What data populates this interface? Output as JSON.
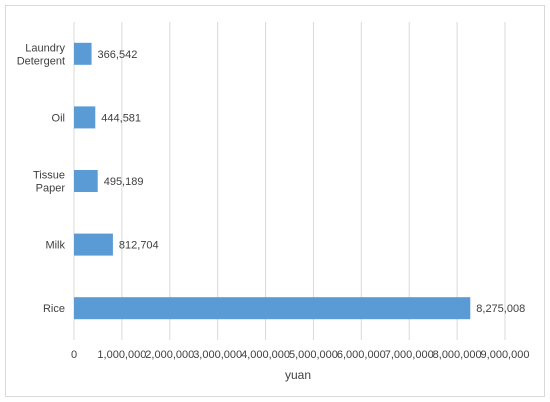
{
  "chart_data": {
    "type": "bar",
    "orientation": "horizontal",
    "categories": [
      "Laundry Detergent",
      "Oil",
      "Tissue Paper",
      "Milk",
      "Rice"
    ],
    "category_lines": [
      [
        "Laundry",
        "Detergent"
      ],
      [
        "Oil"
      ],
      [
        "Tissue",
        "Paper"
      ],
      [
        "Milk"
      ],
      [
        "Rice"
      ]
    ],
    "values": [
      366542,
      444581,
      495189,
      812704,
      8275008
    ],
    "data_labels": [
      "366,542",
      "444,581",
      "495,189",
      "812,704",
      "8,275,008"
    ],
    "xlabel": "yuan",
    "ylabel": "",
    "title": "",
    "xlim": [
      0,
      9000000
    ],
    "x_ticks": [
      0,
      1000000,
      2000000,
      3000000,
      4000000,
      5000000,
      6000000,
      7000000,
      8000000,
      9000000
    ],
    "x_tick_labels": [
      "0",
      "1,000,000",
      "2,000,000",
      "3,000,000",
      "4,000,000",
      "5,000,000",
      "6,000,000",
      "7,000,000",
      "8,000,000",
      "9,000,000"
    ],
    "grid": "vertical",
    "legend": "none",
    "colors": {
      "bar": "#5b9bd5",
      "grid": "#d9d9d9",
      "text": "#404040"
    }
  }
}
